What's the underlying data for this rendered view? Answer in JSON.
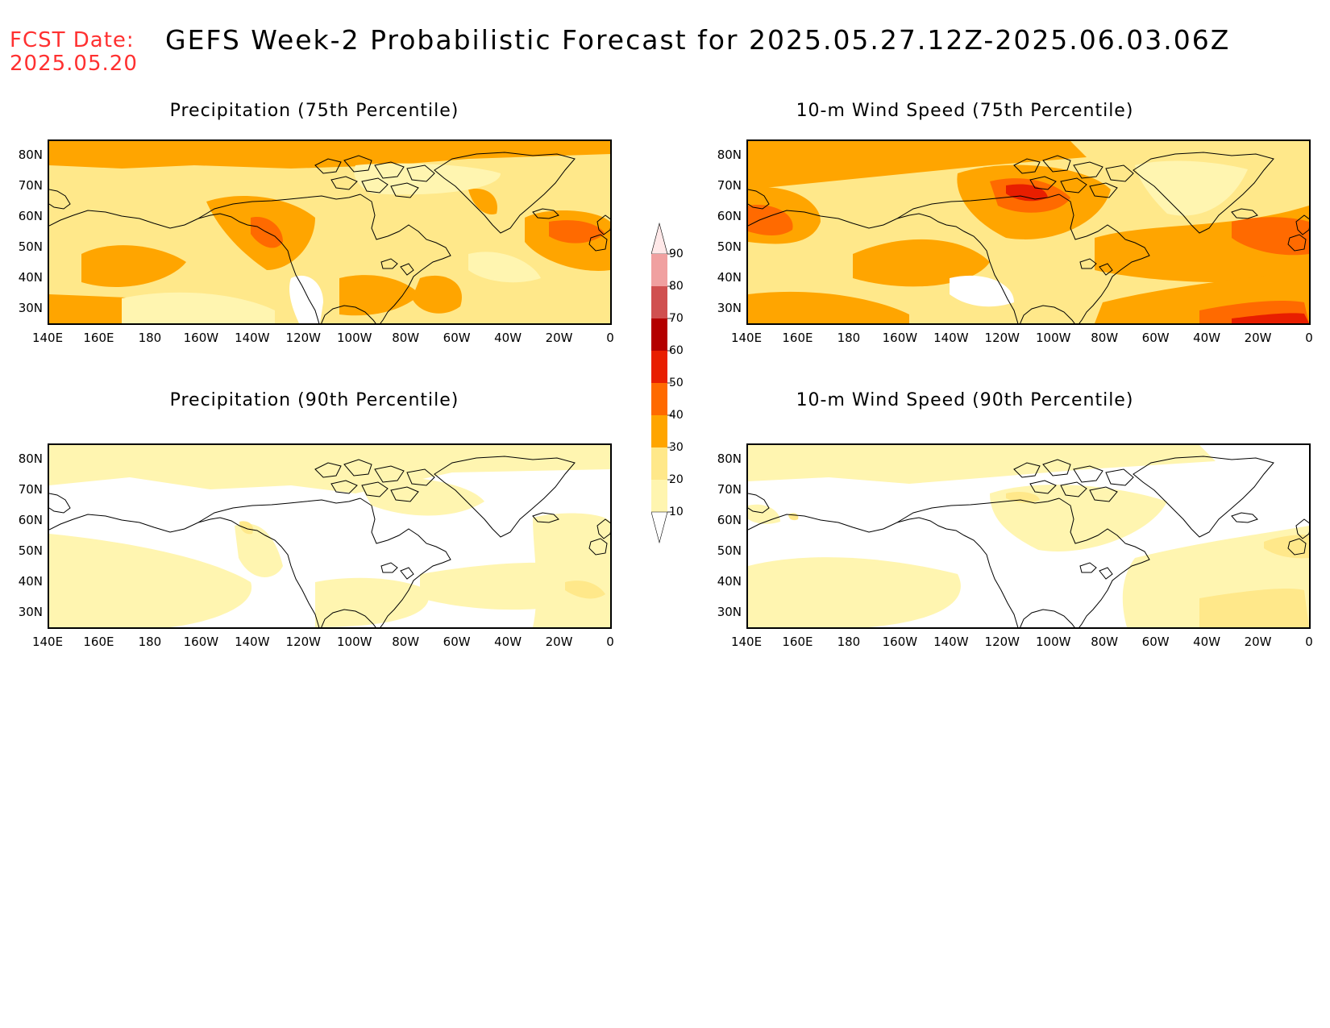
{
  "fcst": {
    "label": "FCST Date:",
    "date": "2025.05.20"
  },
  "title": "GEFS Week-2 Probabilistic Forecast for 2025.05.27.12Z-2025.06.03.06Z",
  "panels": [
    {
      "title": "Precipitation (75th Percentile)"
    },
    {
      "title": "10-m Wind Speed (75th Percentile)"
    },
    {
      "title": "Precipitation (90th Percentile)"
    },
    {
      "title": "10-m Wind Speed (90th Percentile)"
    }
  ],
  "lat_ticks": [
    "80N",
    "70N",
    "60N",
    "50N",
    "40N",
    "30N"
  ],
  "lon_ticks": [
    "140E",
    "160E",
    "180",
    "160W",
    "140W",
    "120W",
    "100W",
    "80W",
    "60W",
    "40W",
    "20W",
    "0"
  ],
  "colorbar": {
    "levels": [
      "10",
      "20",
      "30",
      "40",
      "50",
      "60",
      "70",
      "80",
      "90"
    ],
    "colors": [
      "#fff5b0",
      "#ffe88a",
      "#ffa500",
      "#ff6a00",
      "#e81e00",
      "#b40000",
      "#d05050",
      "#f0a0a0",
      "#ffe8e8"
    ]
  },
  "palette": {
    "white": "#ffffff",
    "c10": "#fff5b0",
    "c20": "#ffe88a",
    "c30": "#ffa500",
    "c40": "#ff6a00",
    "c50": "#e81e00"
  }
}
